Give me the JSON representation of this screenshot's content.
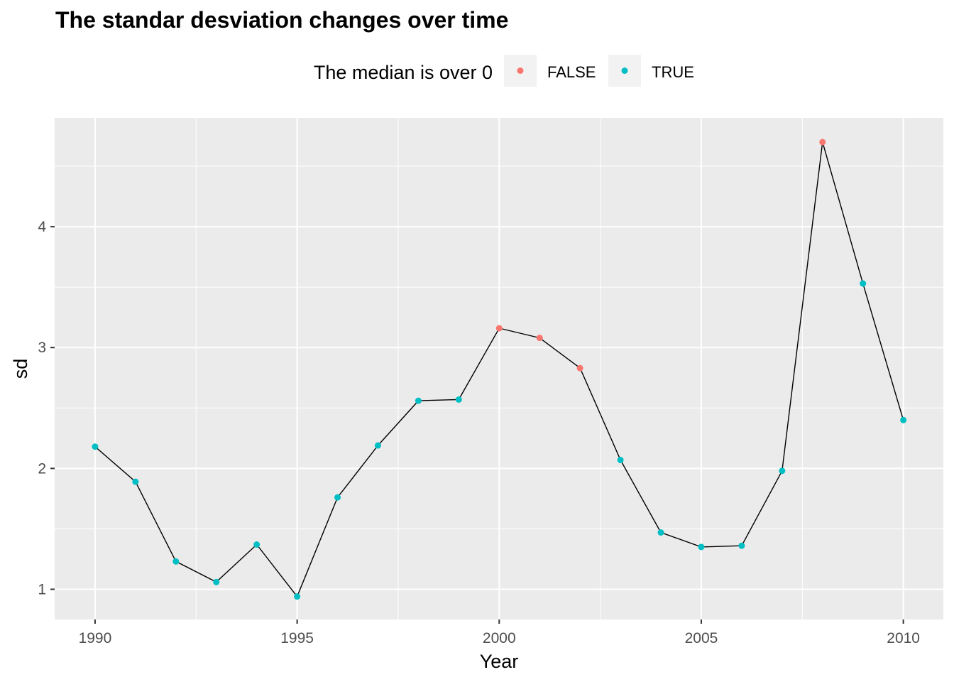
{
  "chart_data": {
    "type": "line",
    "title": "The standar desviation changes over time",
    "xlabel": "Year",
    "ylabel": "sd",
    "xlim": [
      1989,
      2010.99
    ],
    "ylim": [
      0.75,
      4.9
    ],
    "x_ticks": [
      1990,
      1995,
      2000,
      2005,
      2010
    ],
    "y_ticks": [
      1,
      2,
      3,
      4
    ],
    "legend": {
      "title": "The median is over 0",
      "position": "top",
      "entries": [
        {
          "label": "FALSE",
          "color": "#F8766D"
        },
        {
          "label": "TRUE",
          "color": "#00BFC4"
        }
      ]
    },
    "grid": true,
    "line_color": "#000000",
    "points": [
      {
        "x": 1990,
        "y": 2.18,
        "group": "TRUE"
      },
      {
        "x": 1991,
        "y": 1.89,
        "group": "TRUE"
      },
      {
        "x": 1992,
        "y": 1.23,
        "group": "TRUE"
      },
      {
        "x": 1993,
        "y": 1.06,
        "group": "TRUE"
      },
      {
        "x": 1994,
        "y": 1.37,
        "group": "TRUE"
      },
      {
        "x": 1995,
        "y": 0.94,
        "group": "TRUE"
      },
      {
        "x": 1996,
        "y": 1.76,
        "group": "TRUE"
      },
      {
        "x": 1997,
        "y": 2.19,
        "group": "TRUE"
      },
      {
        "x": 1998,
        "y": 2.56,
        "group": "TRUE"
      },
      {
        "x": 1999,
        "y": 2.57,
        "group": "TRUE"
      },
      {
        "x": 2000,
        "y": 3.16,
        "group": "FALSE"
      },
      {
        "x": 2001,
        "y": 3.08,
        "group": "FALSE"
      },
      {
        "x": 2002,
        "y": 2.83,
        "group": "FALSE"
      },
      {
        "x": 2003,
        "y": 2.07,
        "group": "TRUE"
      },
      {
        "x": 2004,
        "y": 1.47,
        "group": "TRUE"
      },
      {
        "x": 2005,
        "y": 1.35,
        "group": "TRUE"
      },
      {
        "x": 2006,
        "y": 1.36,
        "group": "TRUE"
      },
      {
        "x": 2007,
        "y": 1.98,
        "group": "TRUE"
      },
      {
        "x": 2008,
        "y": 4.7,
        "group": "FALSE"
      },
      {
        "x": 2009,
        "y": 3.53,
        "group": "TRUE"
      },
      {
        "x": 2010,
        "y": 2.4,
        "group": "TRUE"
      }
    ]
  }
}
